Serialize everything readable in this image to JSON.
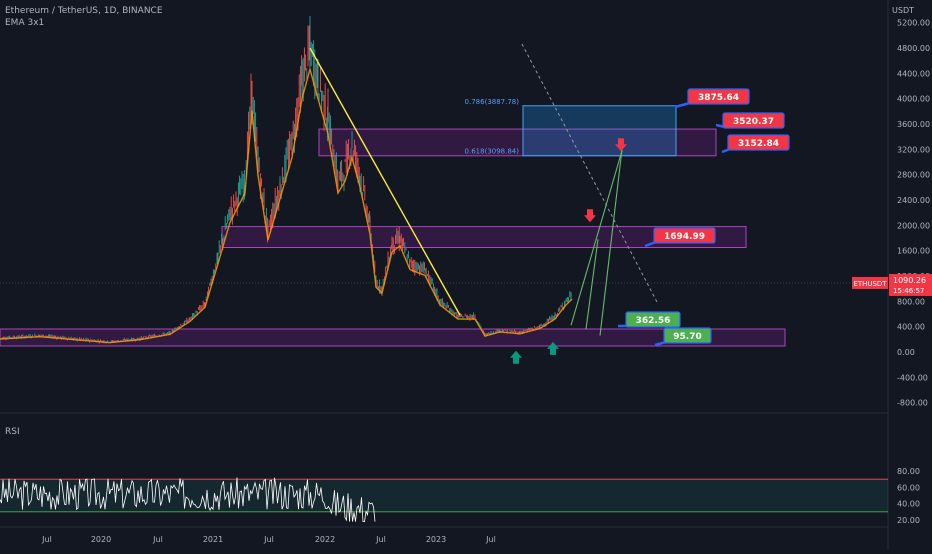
{
  "header": {
    "title": "Ethereum / TetherUS, 1D, BINANCE",
    "indicator": "EMA 3x1",
    "currency": "USDT"
  },
  "rsi_label": "RSI",
  "price_tag": {
    "symbol": "ETHUSDT",
    "price": "1090.26",
    "countdown": "15:46:57"
  },
  "fib_labels": [
    {
      "text": "0.786(3887.78)",
      "value": 3887.78
    },
    {
      "text": "0.618(3098.84)",
      "value": 3098.84
    }
  ],
  "callouts": [
    {
      "text": "3875.64",
      "color": "#f23645"
    },
    {
      "text": "3520.37",
      "color": "#f23645"
    },
    {
      "text": "3152.84",
      "color": "#f23645"
    },
    {
      "text": "1694.99",
      "color": "#f23645"
    },
    {
      "text": "362.56",
      "color": "#4caf50"
    },
    {
      "text": "95.70",
      "color": "#4caf50"
    }
  ],
  "colors": {
    "background": "#131722",
    "candles_up": "#26a69a",
    "candles_down": "#ef5350",
    "ema": "#ff9800",
    "trendline": "#ffeb3b",
    "zone": "#9c27b0",
    "fib_box": "#2196f3",
    "rsi_line": "#ffffff",
    "rsi_band": "#26a69a"
  },
  "chart_data": [
    {
      "type": "line",
      "title": "Ethereum / TetherUS, 1D, BINANCE",
      "x_ticks": [
        "Jul",
        "2020",
        "Jul",
        "2021",
        "Jul",
        "2022",
        "Jul",
        "2023",
        "Jul"
      ],
      "y_ticks": [
        5200,
        4800,
        4400,
        4000,
        3600,
        3200,
        2800,
        2400,
        2000,
        1600,
        1200,
        800,
        400,
        0,
        -400,
        -800
      ],
      "y_tick_labels": [
        "5200.00",
        "4800.00",
        "4400.00",
        "4000.00",
        "3600.00",
        "3200.00",
        "2800.00",
        "2400.00",
        "2000.00",
        "1600.00",
        "1200.00",
        "800.00",
        "400.00",
        "0.00",
        "-400.00",
        "-800.00"
      ],
      "ylim": [
        -1100,
        5350
      ],
      "price_path": [
        [
          0,
          220
        ],
        [
          40,
          260
        ],
        [
          80,
          200
        ],
        [
          110,
          160
        ],
        [
          140,
          210
        ],
        [
          170,
          300
        ],
        [
          190,
          520
        ],
        [
          205,
          760
        ],
        [
          218,
          1500
        ],
        [
          230,
          2200
        ],
        [
          245,
          2700
        ],
        [
          252,
          4100
        ],
        [
          258,
          3000
        ],
        [
          268,
          1900
        ],
        [
          280,
          2600
        ],
        [
          292,
          3300
        ],
        [
          302,
          4300
        ],
        [
          310,
          4800
        ],
        [
          318,
          4300
        ],
        [
          328,
          3700
        ],
        [
          338,
          2700
        ],
        [
          345,
          2900
        ],
        [
          352,
          3300
        ],
        [
          360,
          2800
        ],
        [
          370,
          2000
        ],
        [
          376,
          1100
        ],
        [
          382,
          1000
        ],
        [
          392,
          1700
        ],
        [
          400,
          1800
        ],
        [
          410,
          1400
        ],
        [
          425,
          1300
        ],
        [
          440,
          800
        ],
        [
          458,
          560
        ],
        [
          475,
          560
        ],
        [
          485,
          270
        ],
        [
          500,
          340
        ],
        [
          520,
          310
        ],
        [
          540,
          400
        ],
        [
          555,
          560
        ],
        [
          565,
          780
        ],
        [
          572,
          900
        ]
      ],
      "trendline": [
        [
          310,
          4800
        ],
        [
          460,
          580
        ]
      ],
      "zones": [
        {
          "from_x": 319,
          "to_x": 716,
          "low": 3098,
          "high": 3520
        },
        {
          "from_x": 222,
          "to_x": 746,
          "low": 1650,
          "high": 1980
        },
        {
          "from_x": 0,
          "to_x": 785,
          "low": 95,
          "high": 363
        }
      ],
      "fib_box": {
        "from_x": 523,
        "to_x": 676,
        "low": 3098.84,
        "high": 3887.78
      },
      "current_price": 1090.26,
      "arrows_up": [
        [
          516,
          -90
        ],
        [
          553,
          50
        ]
      ],
      "arrows_down": [
        [
          621,
          3280
        ],
        [
          590,
          2160
        ]
      ],
      "projection_lines": [
        [
          571,
          420,
          622,
          3180
        ],
        [
          586,
          360,
          598,
          1780
        ],
        [
          600,
          260,
          622,
          3200
        ]
      ]
    },
    {
      "type": "line",
      "title": "RSI",
      "y_ticks": [
        80,
        60,
        40,
        20
      ],
      "y_tick_labels": [
        "80.00",
        "60.00",
        "40.00",
        "20.00"
      ],
      "ylim": [
        15,
        92
      ],
      "band": [
        30,
        70
      ]
    }
  ]
}
